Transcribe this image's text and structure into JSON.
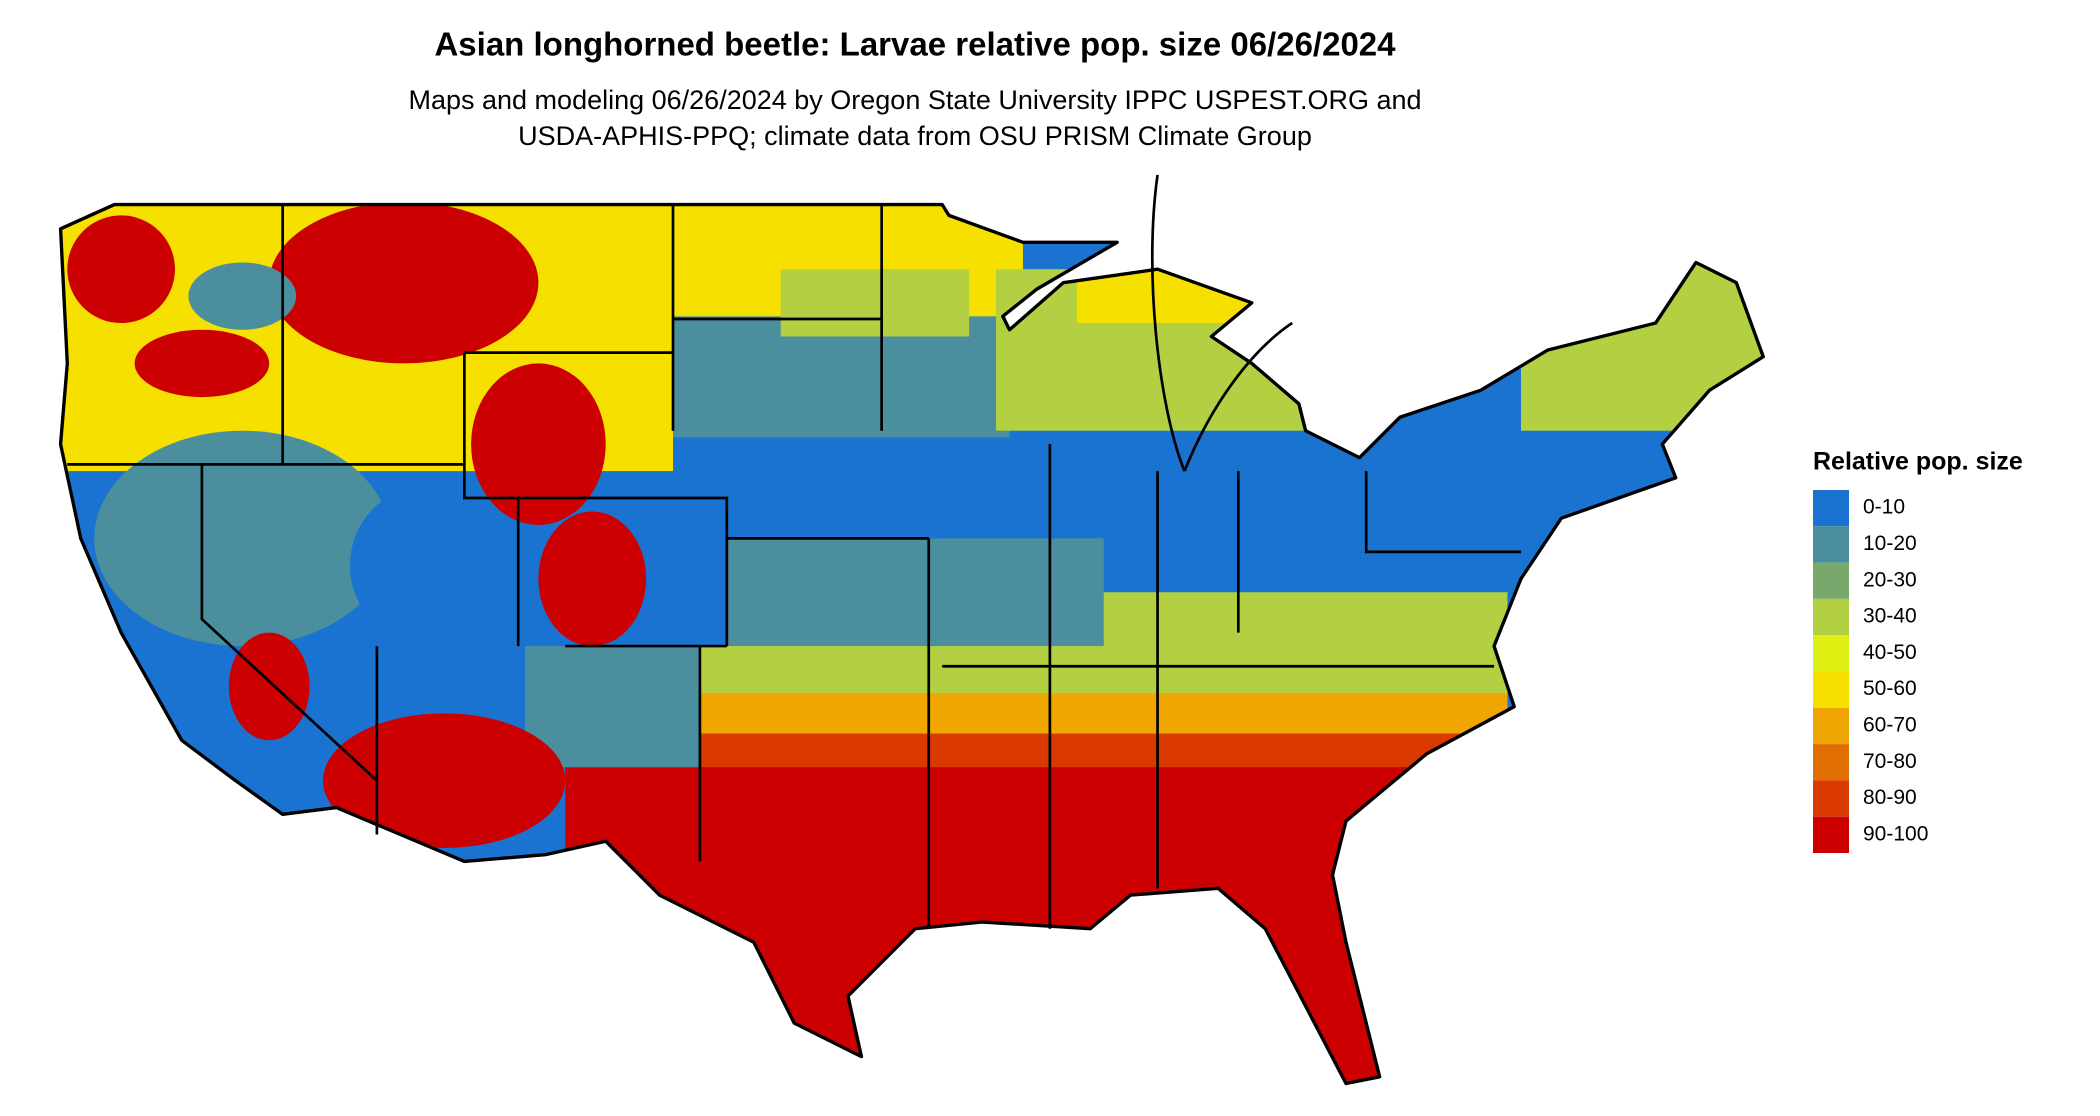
{
  "title": "Asian longhorned beetle: Larvae relative pop. size 06/26/2024",
  "subtitle": [
    "Maps and modeling 06/26/2024 by Oregon State University IPPC USPEST.ORG and",
    "USDA-APHIS-PPQ; climate data from OSU PRISM Climate Group"
  ],
  "legend": {
    "title": "Relative pop. size",
    "items": [
      {
        "label": "0-10",
        "color": "#1a73d0"
      },
      {
        "label": "10-20",
        "color": "#4b8f9f"
      },
      {
        "label": "20-30",
        "color": "#78a86c"
      },
      {
        "label": "30-40",
        "color": "#b2d042"
      },
      {
        "label": "40-50",
        "color": "#def012"
      },
      {
        "label": "50-60",
        "color": "#f6e000"
      },
      {
        "label": "60-70",
        "color": "#f0a600"
      },
      {
        "label": "70-80",
        "color": "#e06e00"
      },
      {
        "label": "80-90",
        "color": "#da3a00"
      },
      {
        "label": "90-100",
        "color": "#cc0000"
      }
    ]
  }
}
